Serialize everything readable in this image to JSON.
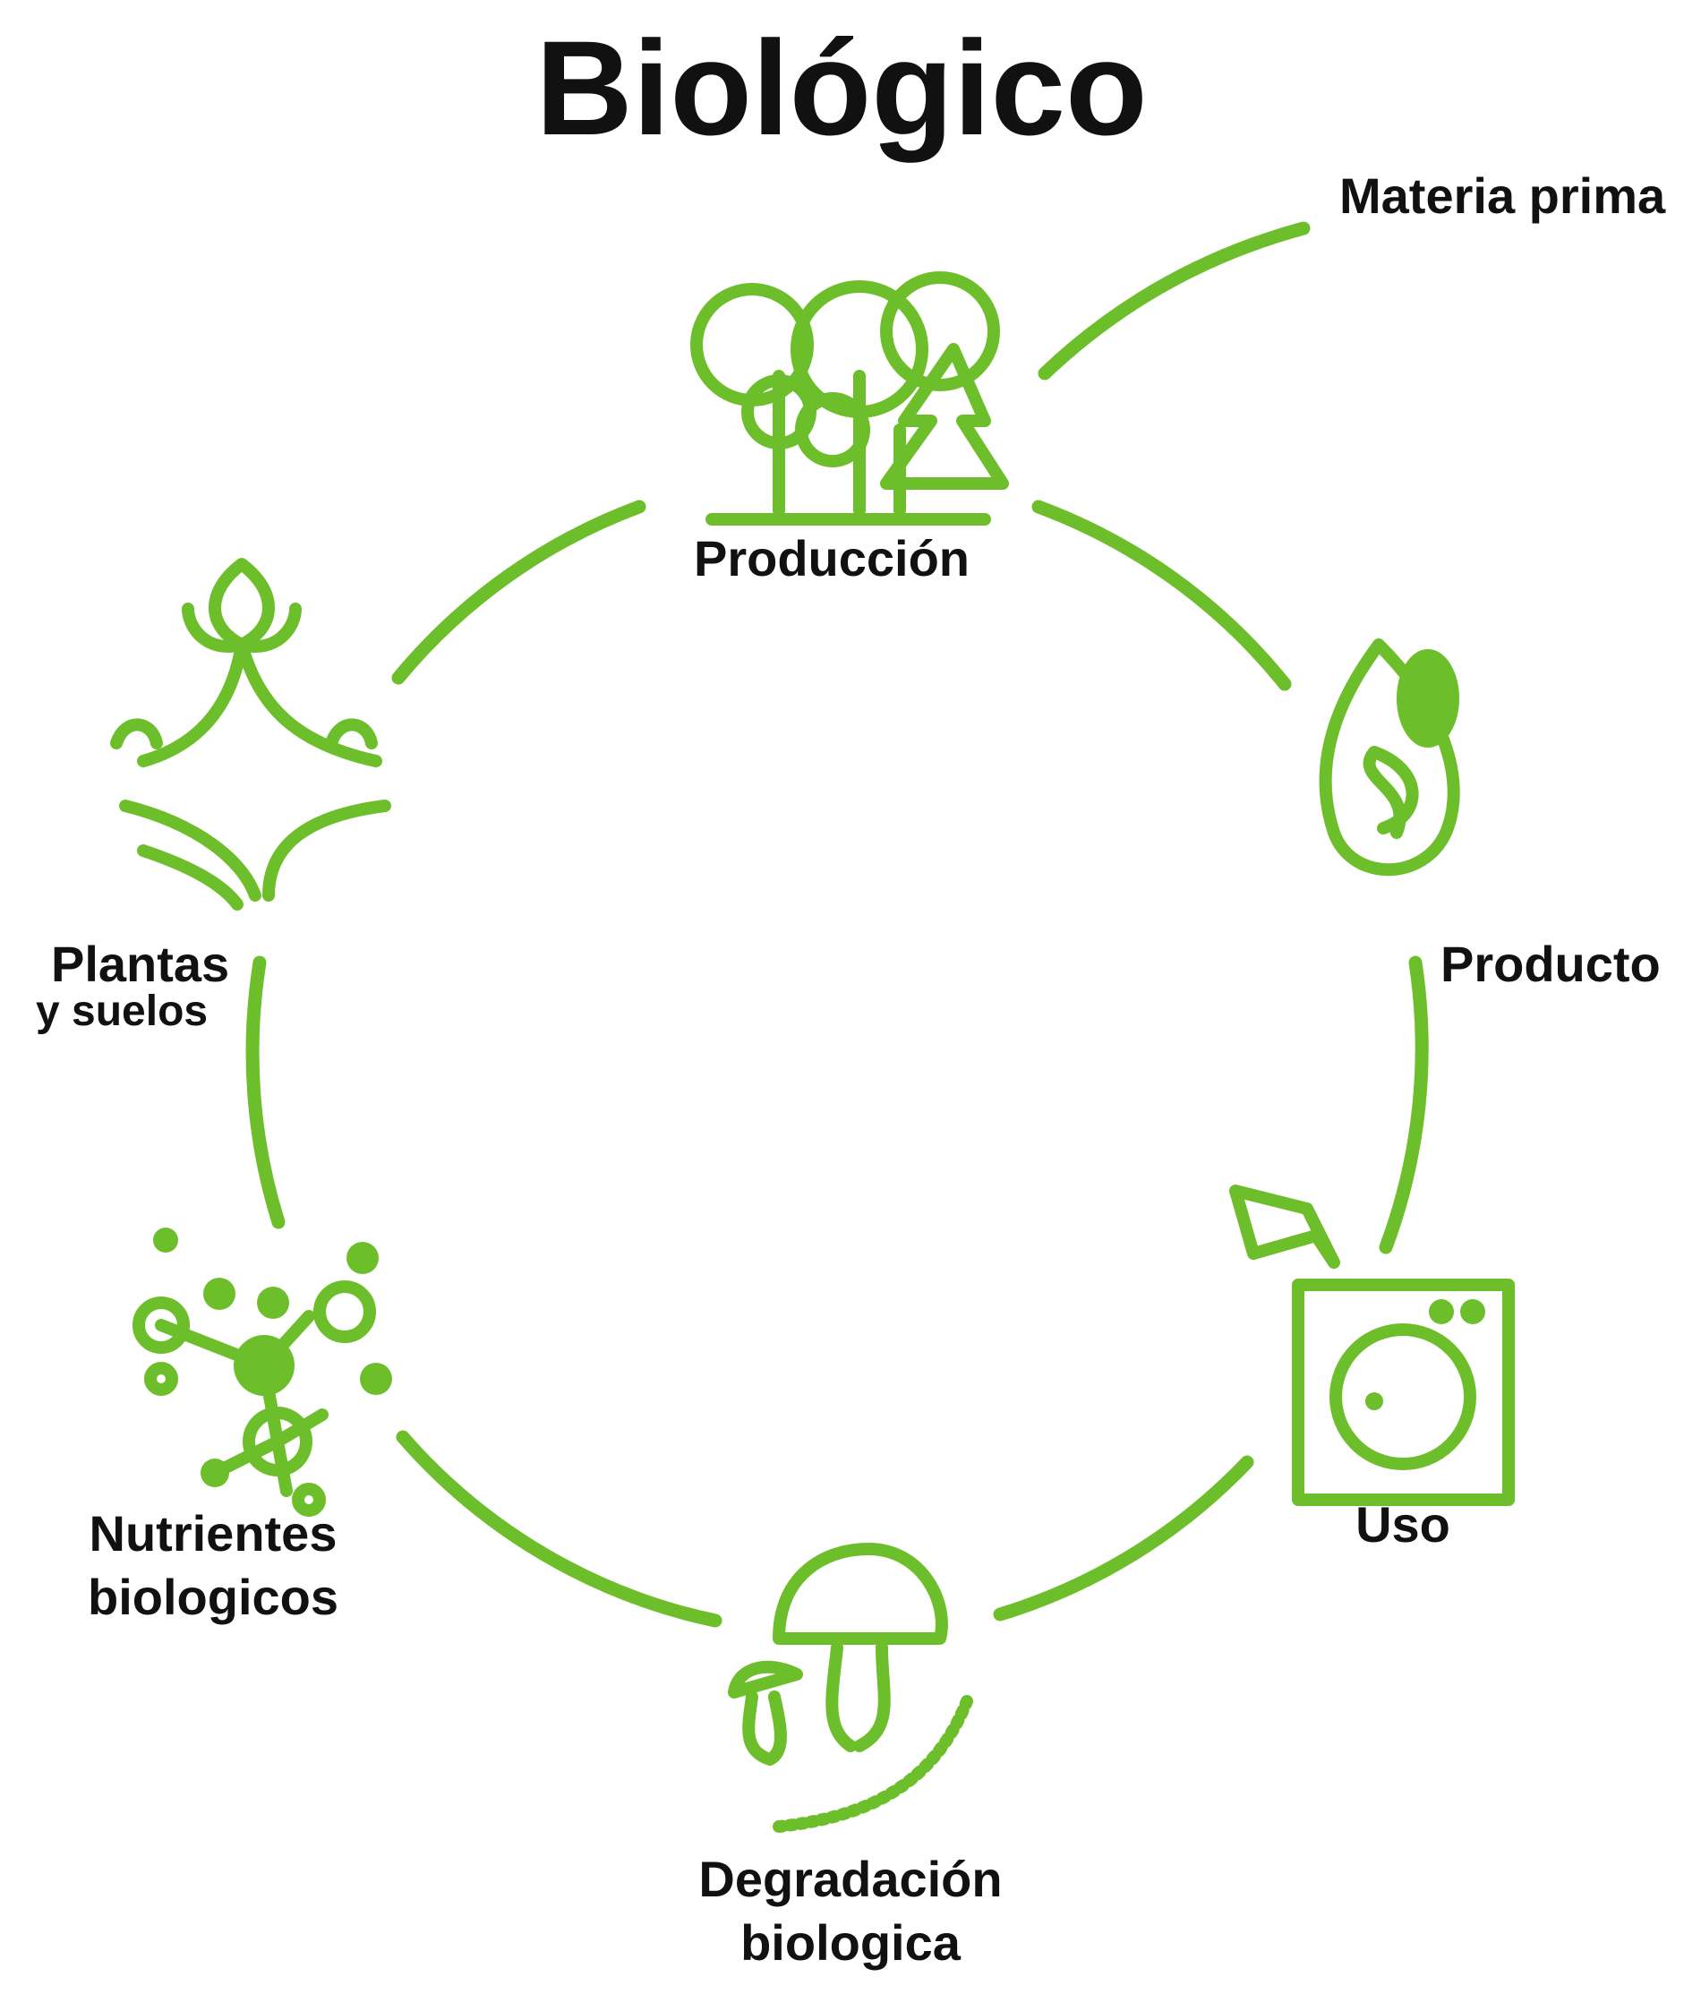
{
  "header": {
    "title": "Biológico"
  },
  "nodes": [
    {
      "lines": [
        "Materia prima"
      ]
    },
    {
      "lines": [
        "Producción"
      ]
    },
    {
      "lines": [
        "Producto"
      ]
    },
    {
      "lines": [
        "Uso"
      ]
    },
    {
      "lines": [
        "Degradación",
        "biologica"
      ]
    },
    {
      "lines": [
        "Nutrientes",
        "biologicos"
      ]
    },
    {
      "lines": [
        "Plantas",
        "y suelos"
      ]
    }
  ]
}
